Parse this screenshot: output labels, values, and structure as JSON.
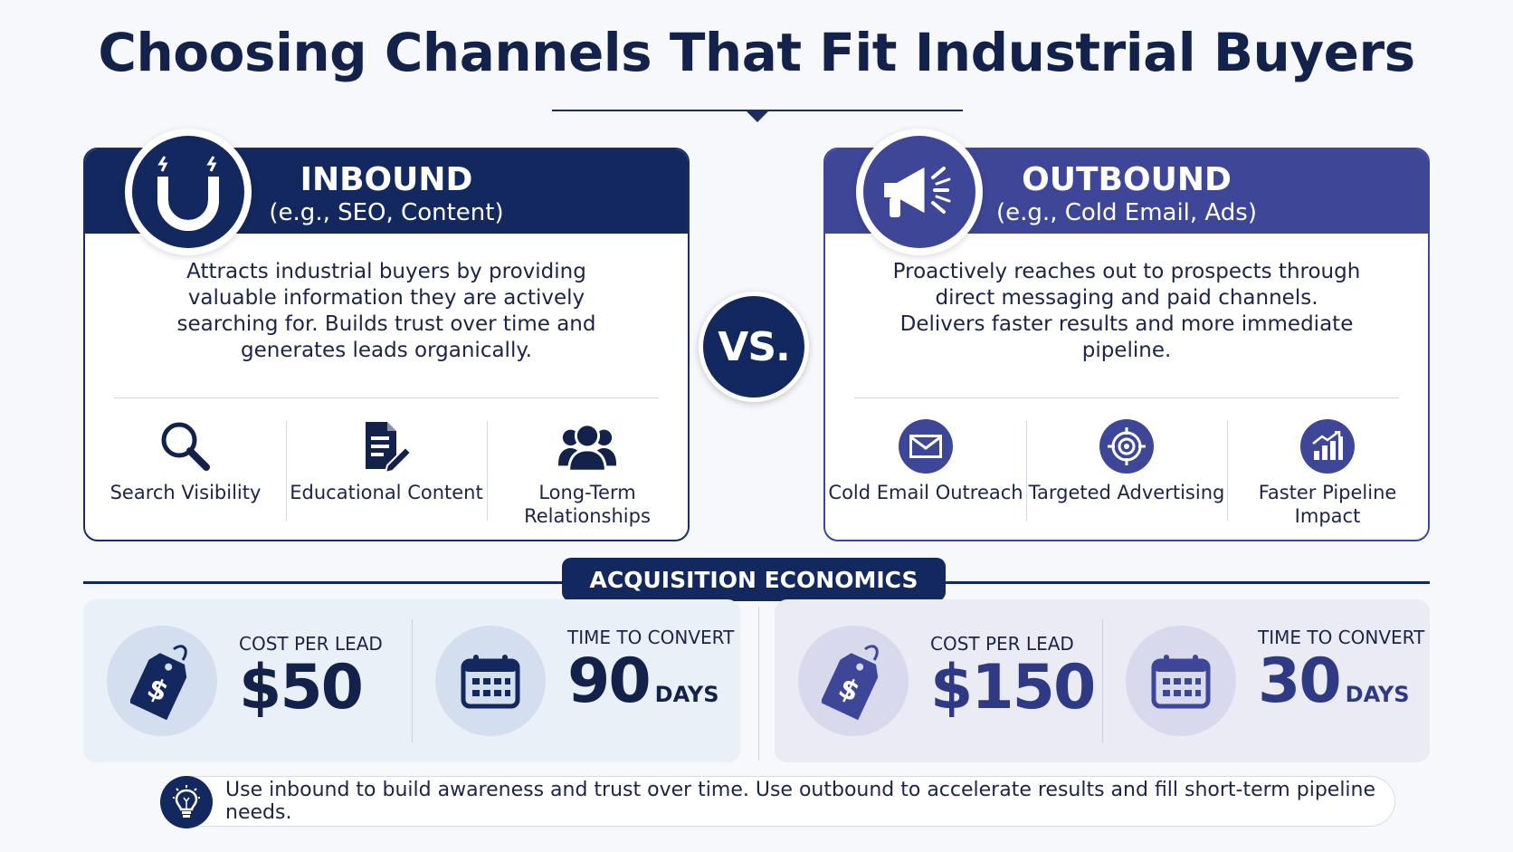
{
  "title": "Choosing Channels That Fit Industrial Buyers",
  "inbound": {
    "title": "INBOUND",
    "subtitle": "(e.g., SEO, Content)",
    "icon": "magnet-icon",
    "description": "Attracts industrial buyers by providing valuable information they are actively searching for. Builds trust over time and generates leads organically.",
    "features": [
      {
        "label": "Search Visibility",
        "icon": "search-icon"
      },
      {
        "label": "Educational Content",
        "icon": "document-edit-icon"
      },
      {
        "label": "Long-Term Relationships",
        "icon": "people-icon"
      }
    ],
    "color": "#13285e"
  },
  "vs": "VS.",
  "outbound": {
    "title": "OUTBOUND",
    "subtitle": "(e.g., Cold Email, Ads)",
    "icon": "megaphone-icon",
    "description": "Proactively reaches out to prospects through direct messaging and paid channels. Delivers faster results and more immediate pipeline.",
    "features": [
      {
        "label": "Cold Email Outreach",
        "icon": "envelope-icon"
      },
      {
        "label": "Targeted Advertising",
        "icon": "target-icon"
      },
      {
        "label": "Faster Pipeline Impact",
        "icon": "growth-chart-icon"
      }
    ],
    "color": "#3e4698"
  },
  "economics": {
    "label": "ACQUISITION ECONOMICS",
    "inbound": {
      "cost_label": "COST PER LEAD",
      "cost_value": "$50",
      "time_label": "TIME TO CONVERT",
      "time_value": "90",
      "time_unit": "DAYS"
    },
    "outbound": {
      "cost_label": "COST PER LEAD",
      "cost_value": "$150",
      "time_label": "TIME TO CONVERT",
      "time_value": "30",
      "time_unit": "DAYS"
    }
  },
  "tip": {
    "icon": "lightbulb-icon",
    "text": "Use inbound to build awareness and trust over time. Use outbound to accelerate results and fill short-term pipeline needs."
  }
}
